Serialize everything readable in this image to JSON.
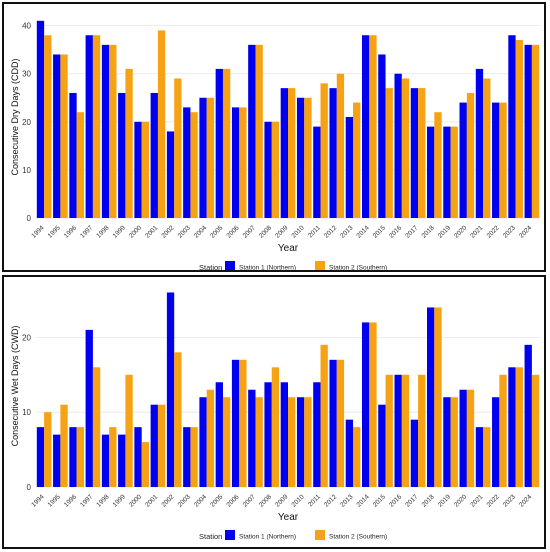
{
  "colors": {
    "station1": "#0000ee",
    "station2": "#f5a214",
    "grid": "#e6e6e6",
    "axis_text": "#333333"
  },
  "chart_data": [
    {
      "type": "bar",
      "xlabel": "Year",
      "ylabel": "Consecutive Dry Days (CDD)",
      "ylim": [
        0,
        42
      ],
      "yticks": [
        0,
        10,
        20,
        30,
        40
      ],
      "grid": true,
      "legend_title": "Station",
      "legend_position": "bottom",
      "categories": [
        "1994",
        "1995",
        "1996",
        "1997",
        "1998",
        "1999",
        "2000",
        "2001",
        "2002",
        "2003",
        "2004",
        "2005",
        "2006",
        "2007",
        "2008",
        "2009",
        "2010",
        "2011",
        "2012",
        "2013",
        "2014",
        "2015",
        "2016",
        "2017",
        "2018",
        "2019",
        "2020",
        "2021",
        "2022",
        "2023",
        "2024"
      ],
      "series": [
        {
          "name": "Station 1 (Northern)",
          "values": [
            41,
            34,
            26,
            38,
            36,
            26,
            20,
            26,
            18,
            23,
            25,
            31,
            23,
            36,
            20,
            27,
            25,
            19,
            27,
            21,
            38,
            34,
            30,
            27,
            19,
            19,
            24,
            31,
            24,
            38,
            36
          ]
        },
        {
          "name": "Station 2 (Southern)",
          "values": [
            38,
            34,
            22,
            38,
            36,
            31,
            20,
            39,
            29,
            22,
            25,
            31,
            23,
            36,
            20,
            27,
            25,
            28,
            30,
            24,
            38,
            27,
            29,
            27,
            22,
            19,
            26,
            29,
            24,
            37,
            36
          ]
        }
      ]
    },
    {
      "type": "bar",
      "xlabel": "Year",
      "ylabel": "Consecutive Wet Days (CWD)",
      "ylim": [
        0,
        27
      ],
      "yticks": [
        0,
        10,
        20
      ],
      "grid": true,
      "legend_title": "Station",
      "legend_position": "bottom",
      "categories": [
        "1994",
        "1995",
        "1996",
        "1997",
        "1998",
        "1999",
        "2000",
        "2001",
        "2002",
        "2003",
        "2004",
        "2005",
        "2006",
        "2007",
        "2008",
        "2009",
        "2010",
        "2011",
        "2012",
        "2013",
        "2014",
        "2015",
        "2016",
        "2017",
        "2018",
        "2019",
        "2020",
        "2021",
        "2022",
        "2023",
        "2024"
      ],
      "series": [
        {
          "name": "Station 1 (Northern)",
          "values": [
            8,
            7,
            8,
            21,
            7,
            7,
            8,
            11,
            26,
            8,
            12,
            14,
            17,
            13,
            14,
            14,
            12,
            14,
            17,
            9,
            22,
            11,
            15,
            9,
            24,
            12,
            13,
            8,
            12,
            16,
            19
          ]
        },
        {
          "name": "Station 2 (Southern)",
          "values": [
            10,
            11,
            8,
            16,
            8,
            15,
            6,
            11,
            18,
            8,
            13,
            12,
            17,
            12,
            16,
            12,
            12,
            19,
            17,
            8,
            22,
            15,
            15,
            15,
            24,
            12,
            13,
            8,
            15,
            16,
            15
          ]
        }
      ]
    }
  ]
}
